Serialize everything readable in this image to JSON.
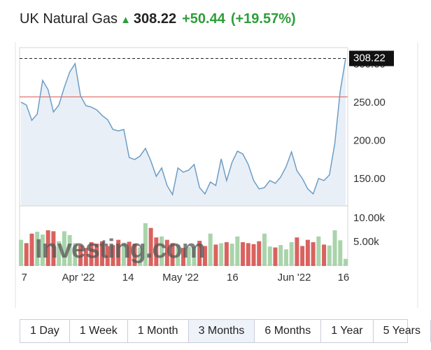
{
  "header": {
    "title": "UK Natural Gas",
    "price": "308.22",
    "change": "+50.44",
    "change_pct": "(+19.57%)"
  },
  "chart_data": [
    {
      "type": "area",
      "color": "#6d9dc5",
      "fill": "#e9eff7",
      "ref_color": "#e06666",
      "reference": 257.78,
      "last_label": "308.22",
      "xlim": [
        0,
        60
      ],
      "xticks": [
        {
          "value": 0.6,
          "label": "7"
        },
        {
          "value": 10.6,
          "label": "Apr '22"
        },
        {
          "value": 19.8,
          "label": "14"
        },
        {
          "value": 29.5,
          "label": "May '22"
        },
        {
          "value": 39.1,
          "label": "16"
        },
        {
          "value": 50.5,
          "label": "Jun '22"
        },
        {
          "value": 59.6,
          "label": "16"
        }
      ],
      "ylim": [
        116,
        316
      ],
      "yticks": [
        {
          "value": 150,
          "label": "150.00"
        },
        {
          "value": 200,
          "label": "200.00"
        },
        {
          "value": 250,
          "label": "250.00"
        },
        {
          "value": 300,
          "label": "300.00"
        }
      ],
      "values": [
        250.9,
        247.2,
        227.1,
        235.3,
        279.4,
        267.4,
        238.1,
        247.2,
        270.2,
        290.4,
        301.4,
        259.2,
        246.3,
        244.5,
        240.8,
        233.5,
        228.0,
        215.1,
        213.3,
        215.1,
        178.4,
        175.7,
        180.3,
        190.4,
        173.9,
        153.7,
        164.7,
        141.7,
        129.8,
        164.7,
        159.2,
        161.9,
        169.3,
        139.0,
        130.7,
        146.3,
        141.7,
        176.6,
        148.2,
        172.0,
        186.7,
        183.0,
        169.3,
        148.2,
        137.2,
        139.0,
        148.2,
        144.5,
        152.8,
        166.5,
        185.8,
        161.0,
        150.9,
        137.2,
        130.7,
        150.9,
        148.2,
        155.5,
        196.8,
        265.6,
        308.22
      ]
    },
    {
      "type": "bar",
      "up_color": "#a9d4ab",
      "down_color": "#d9625f",
      "ylim": [
        0,
        12500
      ],
      "yticks": [
        {
          "value": 5000,
          "label": "5.00k"
        },
        {
          "value": 10000,
          "label": "10.00k"
        }
      ],
      "values": [
        5500,
        4800,
        6800,
        7200,
        6600,
        7500,
        7300,
        5200,
        7300,
        6500,
        4800,
        4300,
        3800,
        5000,
        4700,
        5200,
        4200,
        4400,
        5500,
        4900,
        5100,
        4700,
        3900,
        9000,
        8000,
        6000,
        6200,
        5500,
        4800,
        4500,
        3800,
        4000,
        4100,
        5300,
        4200,
        6800,
        4500,
        4800,
        5000,
        4700,
        6200,
        5000,
        4800,
        4600,
        5200,
        6800,
        4100,
        3900,
        4400,
        3500,
        5000,
        6000,
        4200,
        5500,
        5000,
        6200,
        4500,
        4300,
        7500,
        5400,
        1500
      ]
    }
  ],
  "watermark": "Investing.com",
  "ranges": [
    "1 Day",
    "1 Week",
    "1 Month",
    "3 Months",
    "6 Months",
    "1 Year",
    "5 Years"
  ],
  "selected_range": 3
}
